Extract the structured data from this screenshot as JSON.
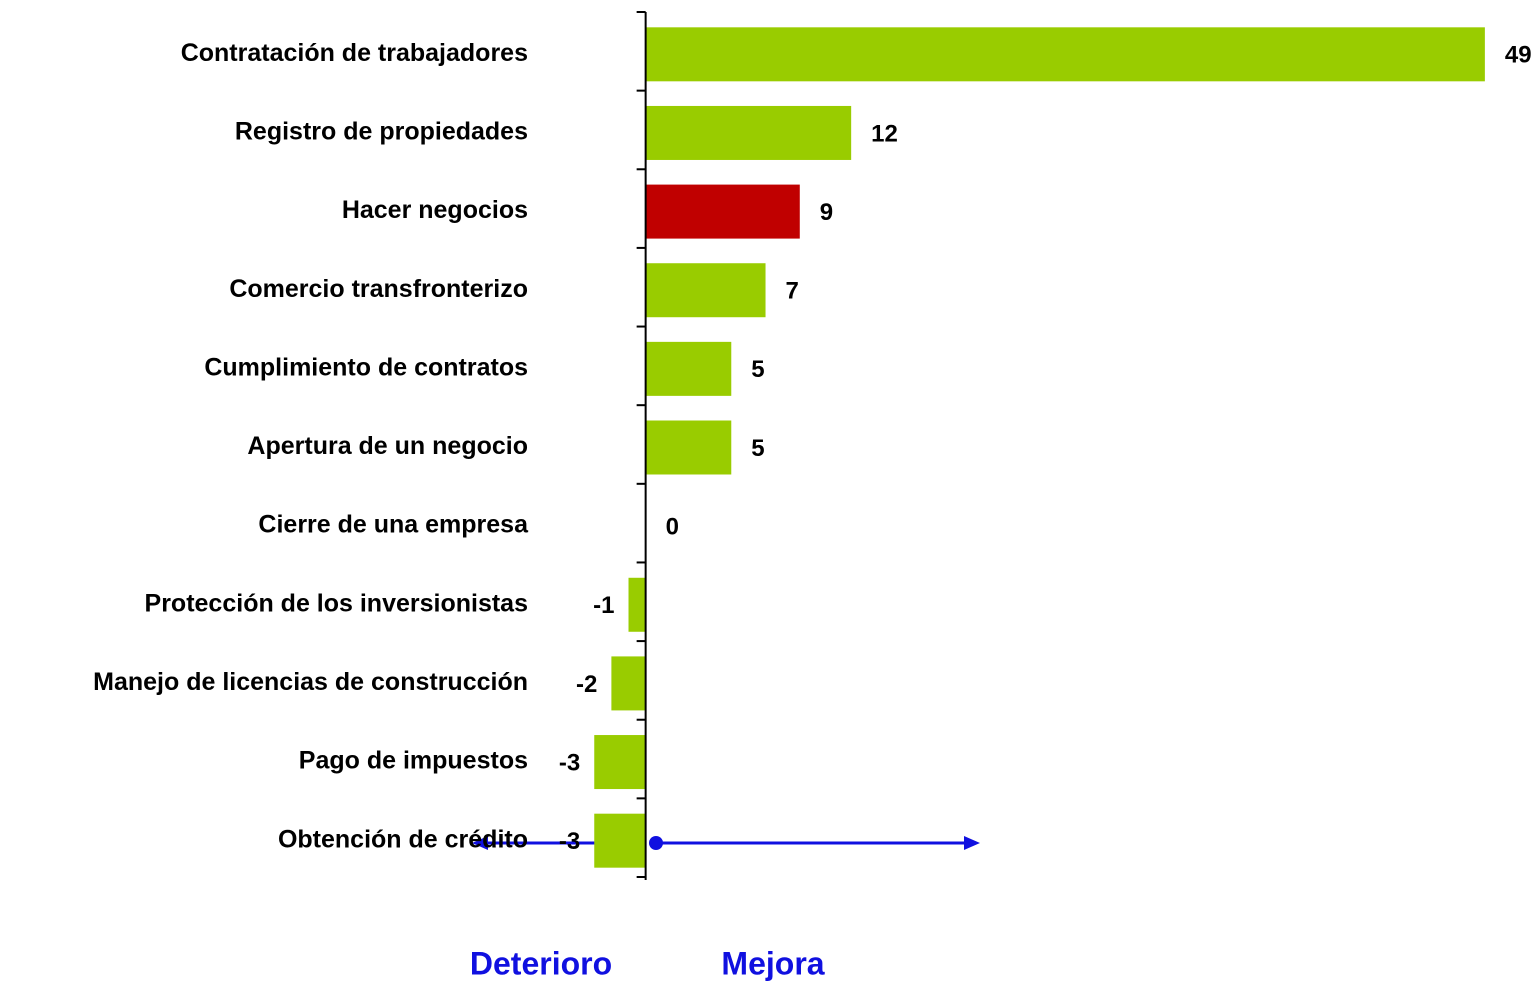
{
  "chart_data": {
    "type": "barh",
    "categories": [
      "Contratación de trabajadores",
      "Registro de propiedades",
      "Hacer negocios",
      "Comercio transfronterizo",
      "Cumplimiento de contratos",
      "Apertura de un negocio",
      "Cierre de una empresa",
      "Protección de los inversionistas",
      "Manejo de licencias de construcción",
      "Pago de impuestos",
      "Obtención de crédito"
    ],
    "values": [
      49,
      12,
      9,
      7,
      5,
      5,
      0,
      -1,
      -2,
      -3,
      -3
    ],
    "colors": [
      "#99cc00",
      "#99cc00",
      "#c00000",
      "#99cc00",
      "#99cc00",
      "#99cc00",
      "#99cc00",
      "#99cc00",
      "#99cc00",
      "#99cc00",
      "#99cc00"
    ],
    "xlim": [
      -5,
      50
    ],
    "annotations": [
      "Deterioro",
      "Mejora"
    ]
  }
}
